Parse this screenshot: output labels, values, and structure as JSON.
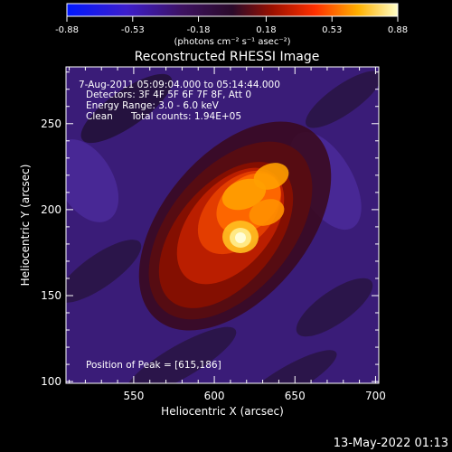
{
  "colorbar": {
    "min": -0.88,
    "max": 0.88,
    "ticks": [
      "-0.88",
      "-0.53",
      "-0.18",
      "0.18",
      "0.53",
      "0.88"
    ],
    "unit_label": "(photons cm⁻² s⁻¹ asec⁻²)"
  },
  "chart_data": {
    "type": "heatmap",
    "title": "Reconstructed RHESSI Image",
    "xlabel": "Heliocentric X (arcsec)",
    "ylabel": "Heliocentric Y (arcsec)",
    "xlim": [
      508,
      702
    ],
    "ylim": [
      99,
      283
    ],
    "x_ticks": [
      "550",
      "600",
      "650",
      "700"
    ],
    "y_ticks": [
      "100",
      "150",
      "200",
      "250"
    ],
    "x_tick_values": [
      550,
      600,
      650,
      700
    ],
    "y_tick_values": [
      100,
      150,
      200,
      250
    ],
    "annotations": {
      "time_range": "7-Aug-2011 05:09:04.000 to 05:14:44.000",
      "detectors": "Detectors: 3F 4F 5F 6F 7F 8F, Att 0",
      "energy": "Energy Range: 3.0 - 6.0 keV",
      "algorithm": "Clean",
      "total_counts": "Total counts: 1.94E+05",
      "peak": "Position of Peak = [615,186]"
    },
    "peak": [
      615,
      186
    ]
  },
  "footer": {
    "timestamp": "13-May-2022 01:13"
  }
}
